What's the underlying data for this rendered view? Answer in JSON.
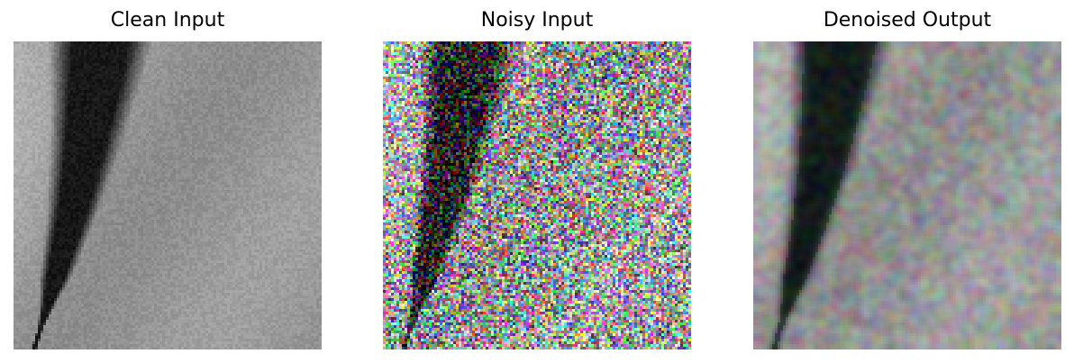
{
  "figure": {
    "panels": [
      {
        "title": "Clean Input",
        "kind": "grayscale-clean"
      },
      {
        "title": "Noisy Input",
        "kind": "color-noise"
      },
      {
        "title": "Denoised Output",
        "kind": "color-smoothed"
      }
    ]
  }
}
